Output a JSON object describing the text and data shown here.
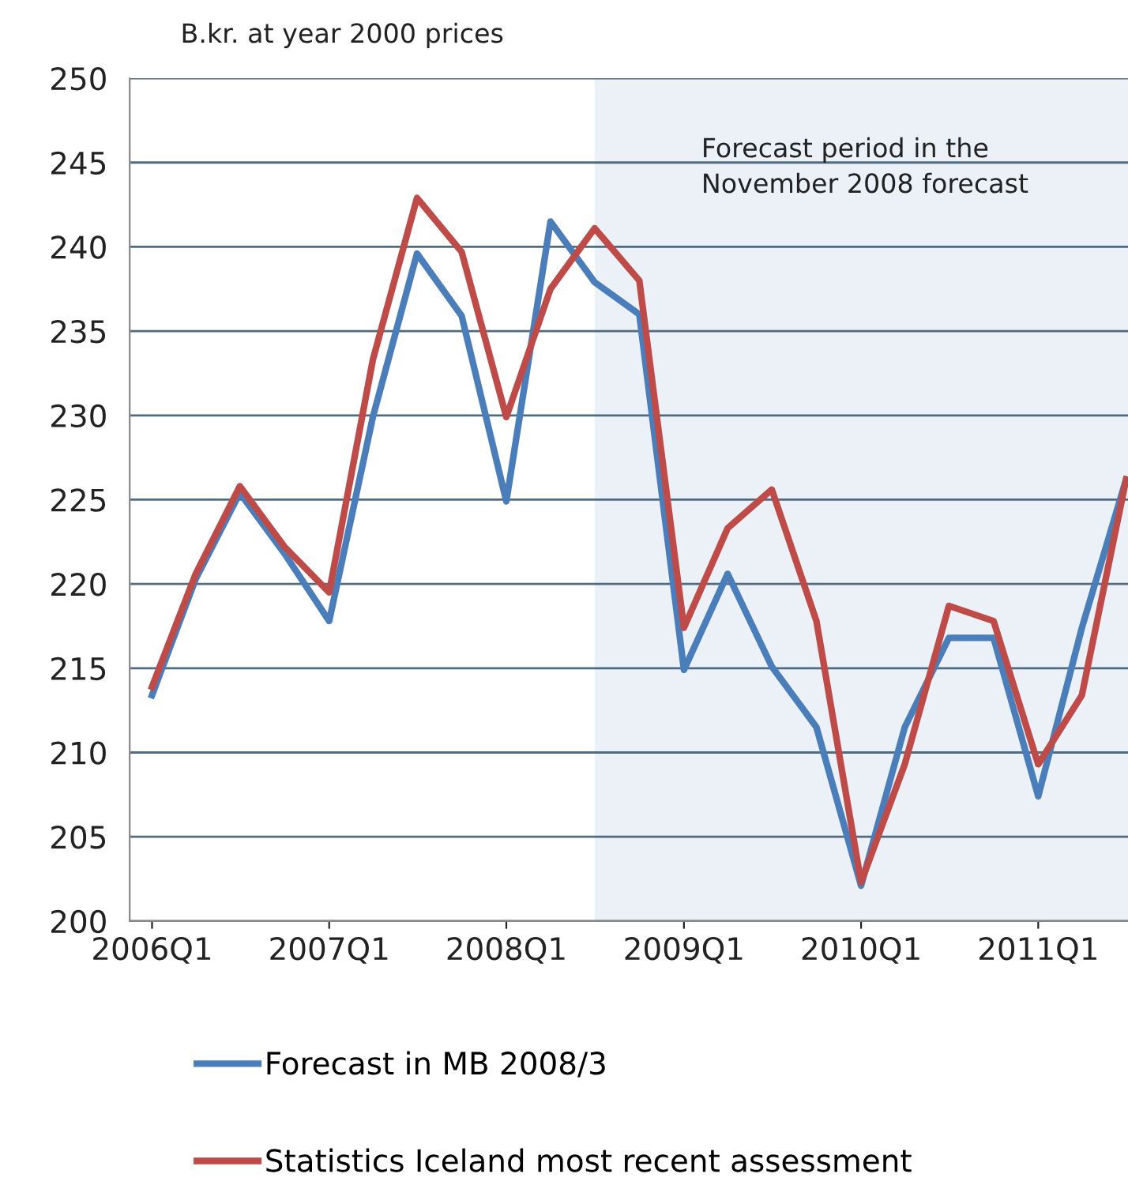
{
  "chart_data": {
    "type": "line",
    "ylabel": "B.kr. at year 2000 prices",
    "x": [
      "2006-01",
      "2006-04",
      "2006-07",
      "2006-10",
      "2007-01",
      "2007-04",
      "2007-07",
      "2007-10",
      "2008-01",
      "2008-04",
      "2008-07",
      "2008-10",
      "2009-01",
      "2009-04",
      "2009-07",
      "2009-10",
      "2010-01",
      "2010-04",
      "2010-07",
      "2010-10",
      "2011-01",
      "2011-04",
      "2011-07"
    ],
    "series": [
      {
        "name": "Forecast in MB 2008/3",
        "color": "#4a7ebb",
        "values": [
          213.4,
          220.3,
          225.4,
          221.8,
          217.8,
          229.9,
          239.6,
          235.9,
          224.9,
          241.5,
          237.9,
          236.0,
          214.9,
          220.6,
          215.1,
          211.5,
          202.1,
          211.5,
          216.8,
          216.8,
          207.4,
          217.4,
          226.2
        ]
      },
      {
        "name": "Statistics Iceland most recent assessment",
        "color": "#be4b48",
        "values": [
          213.9,
          220.6,
          225.8,
          222.2,
          219.5,
          233.3,
          242.9,
          239.7,
          229.9,
          237.5,
          241.1,
          238.0,
          217.4,
          223.3,
          225.6,
          217.8,
          202.3,
          209.3,
          218.7,
          217.8,
          209.3,
          213.4,
          226.2
        ]
      }
    ],
    "xlim": [
      "2005-11-16",
      "2011-07-05"
    ],
    "xticks": [
      {
        "value": "2006-01",
        "label": "2006Q1"
      },
      {
        "value": "2007-01",
        "label": "2007Q1"
      },
      {
        "value": "2008-01",
        "label": "2008Q1"
      },
      {
        "value": "2009-01",
        "label": "2009Q1"
      },
      {
        "value": "2010-01",
        "label": "2010Q1"
      },
      {
        "value": "2011-01",
        "label": "2011Q1"
      }
    ],
    "ylim": [
      200,
      250
    ],
    "yticks": [
      200,
      205,
      210,
      215,
      220,
      225,
      230,
      235,
      240,
      245,
      250
    ],
    "bands": [
      {
        "axis": "x",
        "from": "2008-07",
        "to": "2011-07-05",
        "label": "Forecast period in the\nNovember 2008 forecast",
        "color": "#dce6f2"
      }
    ],
    "grid": "y",
    "legend": "bottom",
    "marker": "none",
    "line_style": "solid"
  }
}
